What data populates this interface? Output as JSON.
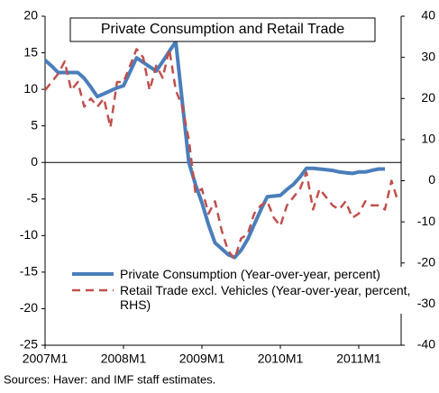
{
  "chart_data": {
    "type": "line",
    "title": "Private Consumption and Retail Trade",
    "source": "Sources: Haver: and IMF staff estimates.",
    "categories": [
      "2007M1",
      null,
      null,
      null,
      null,
      null,
      null,
      null,
      null,
      null,
      null,
      null,
      "2008M1",
      null,
      null,
      null,
      null,
      null,
      null,
      null,
      null,
      null,
      null,
      null,
      "2009M1",
      null,
      null,
      null,
      null,
      null,
      null,
      null,
      null,
      null,
      null,
      null,
      "2010M1",
      null,
      null,
      null,
      null,
      null,
      null,
      null,
      null,
      null,
      null,
      null,
      "2011M1",
      null,
      null,
      null,
      null,
      null,
      null
    ],
    "series": [
      {
        "name": "Private Consumption (Year-over-year, percent)",
        "color": "#4a7ebb",
        "dash": false,
        "values": [
          14,
          13.2,
          12.3,
          12.3,
          12.3,
          12.3,
          11.5,
          10.3,
          9,
          9.4,
          9.8,
          10.2,
          10.5,
          12.4,
          14.3,
          13.7,
          13.1,
          12.5,
          13.8,
          15.2,
          16.5,
          8.2,
          0,
          -3,
          -5.5,
          -8.5,
          -11,
          -11.8,
          -12.6,
          -13,
          -12,
          -10.5,
          -8.5,
          -6.5,
          -4.7,
          -4.6,
          -4.5,
          -3.7,
          -3,
          -2,
          -0.8,
          -0.8,
          -0.9,
          -1,
          -1.1,
          -1.3,
          -1.4,
          -1.5,
          -1.3,
          -1.3,
          -1.1,
          -0.9,
          -0.9,
          null,
          null
        ]
      },
      {
        "name": "Retail Trade excl. Vehicles (Year-over-year, percent, RHS)",
        "color": "#c0504d",
        "dash": true,
        "axis": "y2",
        "values": [
          22,
          24,
          26,
          29,
          22,
          24,
          18,
          20,
          18,
          20,
          13,
          24,
          24,
          28,
          32,
          30,
          22,
          28,
          25,
          32,
          22,
          18,
          10,
          -3,
          -2,
          -8,
          -5,
          -12,
          -17,
          -19,
          -14,
          -13,
          -8,
          -6,
          -5,
          -9,
          -11,
          -6,
          -4,
          -2,
          2,
          -7,
          -2,
          -4,
          -6,
          -7,
          -5,
          -9,
          -8,
          -5,
          -6,
          -6,
          -7,
          0,
          -5
        ]
      }
    ],
    "ylim": [
      -25,
      20
    ],
    "yticks": [
      -25,
      -20,
      -15,
      -10,
      -5,
      0,
      5,
      10,
      15,
      20
    ],
    "y2lim": [
      -40,
      40
    ],
    "y2ticks": [
      -40,
      -30,
      -20,
      -10,
      0,
      10,
      20,
      30,
      40
    ],
    "grid": false
  }
}
